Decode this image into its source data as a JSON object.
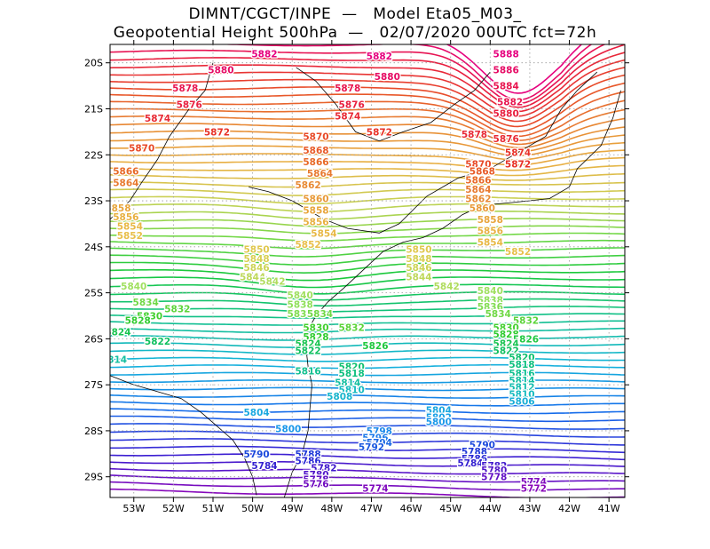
{
  "header": {
    "title_line1": "DIMNT/CGCT/INPE  —   Model Eta05_M03_",
    "title_line2": "Geopotential Height 500hPa  —   02/07/2020 00UTC fct=72h"
  },
  "chart_data": {
    "type": "contour",
    "title": "DIMNT/CGCT/INPE  —   Model Eta05_M03_",
    "subtitle": "Geopotential Height 500hPa  —   02/07/2020 00UTC fct=72h",
    "xlabel": "",
    "ylabel": "",
    "xlim": [
      -53.6,
      -40.6
    ],
    "ylim": [
      -29.45,
      -19.6
    ],
    "grid": true,
    "x_ticks": [
      -53,
      -52,
      -51,
      -50,
      -49,
      -48,
      -47,
      -46,
      -45,
      -44,
      -43,
      -42,
      -41
    ],
    "x_tick_labels": [
      "53W",
      "52W",
      "51W",
      "50W",
      "49W",
      "48W",
      "47W",
      "46W",
      "45W",
      "44W",
      "43W",
      "42W",
      "41W"
    ],
    "y_ticks": [
      -20,
      -21,
      -22,
      -23,
      -24,
      -25,
      -26,
      -27,
      -28,
      -29
    ],
    "y_tick_labels": [
      "20S",
      "21S",
      "22S",
      "23S",
      "24S",
      "25S",
      "26S",
      "27S",
      "28S",
      "29S"
    ],
    "contour_interval": 2,
    "level_range": [
      5766,
      5890
    ],
    "contour_labels": [
      {
        "value": 5888,
        "lon": -43.6,
        "lat": -19.8,
        "color": "#e6007e"
      },
      {
        "value": 5886,
        "lon": -43.6,
        "lat": -20.15,
        "color": "#e60a64"
      },
      {
        "value": 5884,
        "lon": -43.6,
        "lat": -20.5,
        "color": "#e8154f"
      },
      {
        "value": 5882,
        "lon": -49.7,
        "lat": -19.8,
        "color": "#e6007e"
      },
      {
        "value": 5882,
        "lon": -46.8,
        "lat": -19.85,
        "color": "#e6007e"
      },
      {
        "value": 5882,
        "lon": -43.5,
        "lat": -20.85,
        "color": "#e8154f"
      },
      {
        "value": 5880,
        "lon": -50.8,
        "lat": -20.15,
        "color": "#e60a64"
      },
      {
        "value": 5880,
        "lon": -46.6,
        "lat": -20.3,
        "color": "#e60a64"
      },
      {
        "value": 5880,
        "lon": -43.6,
        "lat": -21.1,
        "color": "#e82040"
      },
      {
        "value": 5878,
        "lon": -51.7,
        "lat": -20.55,
        "color": "#e8154f"
      },
      {
        "value": 5878,
        "lon": -47.6,
        "lat": -20.55,
        "color": "#e8154f"
      },
      {
        "value": 5878,
        "lon": -44.4,
        "lat": -21.55,
        "color": "#e82a35"
      },
      {
        "value": 5876,
        "lon": -51.6,
        "lat": -20.9,
        "color": "#e82040"
      },
      {
        "value": 5876,
        "lon": -47.5,
        "lat": -20.9,
        "color": "#e82040"
      },
      {
        "value": 5876,
        "lon": -43.6,
        "lat": -21.65,
        "color": "#e82a35"
      },
      {
        "value": 5874,
        "lon": -52.4,
        "lat": -21.2,
        "color": "#e82a35"
      },
      {
        "value": 5874,
        "lon": -47.6,
        "lat": -21.15,
        "color": "#e82a35"
      },
      {
        "value": 5874,
        "lon": -43.3,
        "lat": -21.95,
        "color": "#e83228"
      },
      {
        "value": 5872,
        "lon": -50.9,
        "lat": -21.5,
        "color": "#e83228"
      },
      {
        "value": 5872,
        "lon": -46.8,
        "lat": -21.5,
        "color": "#e83228"
      },
      {
        "value": 5872,
        "lon": -43.3,
        "lat": -22.2,
        "color": "#e83228"
      },
      {
        "value": 5870,
        "lon": -52.8,
        "lat": -21.85,
        "color": "#e84a28"
      },
      {
        "value": 5870,
        "lon": -48.4,
        "lat": -21.6,
        "color": "#e84a28"
      },
      {
        "value": 5870,
        "lon": -44.3,
        "lat": -22.2,
        "color": "#e84a28"
      },
      {
        "value": 5868,
        "lon": -48.4,
        "lat": -21.9,
        "color": "#e85a28"
      },
      {
        "value": 5868,
        "lon": -44.2,
        "lat": -22.35,
        "color": "#e85a28"
      },
      {
        "value": 5866,
        "lon": -53.2,
        "lat": -22.35,
        "color": "#e86a28"
      },
      {
        "value": 5866,
        "lon": -48.4,
        "lat": -22.15,
        "color": "#e86a28"
      },
      {
        "value": 5866,
        "lon": -44.3,
        "lat": -22.55,
        "color": "#e86a28"
      },
      {
        "value": 5864,
        "lon": -53.2,
        "lat": -22.6,
        "color": "#e87a30"
      },
      {
        "value": 5864,
        "lon": -48.3,
        "lat": -22.4,
        "color": "#e87a30"
      },
      {
        "value": 5864,
        "lon": -44.3,
        "lat": -22.75,
        "color": "#e87a30"
      },
      {
        "value": 5862,
        "lon": -48.6,
        "lat": -22.65,
        "color": "#e88a35"
      },
      {
        "value": 5862,
        "lon": -44.3,
        "lat": -22.95,
        "color": "#e88a35"
      },
      {
        "value": 5860,
        "lon": -48.4,
        "lat": -22.95,
        "color": "#e89a38"
      },
      {
        "value": 5860,
        "lon": -44.2,
        "lat": -23.15,
        "color": "#e89a38"
      },
      {
        "value": 5858,
        "lon": -53.4,
        "lat": -23.15,
        "color": "#e8a53c"
      },
      {
        "value": 5858,
        "lon": -48.4,
        "lat": -23.2,
        "color": "#e8a53c"
      },
      {
        "value": 5858,
        "lon": -44.0,
        "lat": -23.4,
        "color": "#e8a53c"
      },
      {
        "value": 5856,
        "lon": -53.2,
        "lat": -23.35,
        "color": "#e8b040"
      },
      {
        "value": 5856,
        "lon": -48.4,
        "lat": -23.45,
        "color": "#e8b040"
      },
      {
        "value": 5856,
        "lon": -44.0,
        "lat": -23.65,
        "color": "#e8b040"
      },
      {
        "value": 5854,
        "lon": -53.1,
        "lat": -23.55,
        "color": "#e8b845"
      },
      {
        "value": 5854,
        "lon": -48.2,
        "lat": -23.7,
        "color": "#e8b845"
      },
      {
        "value": 5854,
        "lon": -44.0,
        "lat": -23.9,
        "color": "#e8b845"
      },
      {
        "value": 5852,
        "lon": -53.1,
        "lat": -23.75,
        "color": "#e8bf4a"
      },
      {
        "value": 5852,
        "lon": -48.6,
        "lat": -23.95,
        "color": "#e8bf4a"
      },
      {
        "value": 5852,
        "lon": -43.3,
        "lat": -24.1,
        "color": "#e8bf4a"
      },
      {
        "value": 5850,
        "lon": -49.9,
        "lat": -24.05,
        "color": "#e0c84e"
      },
      {
        "value": 5850,
        "lon": -45.8,
        "lat": -24.05,
        "color": "#e0c84e"
      },
      {
        "value": 5848,
        "lon": -49.9,
        "lat": -24.25,
        "color": "#d8cf52"
      },
      {
        "value": 5848,
        "lon": -45.8,
        "lat": -24.25,
        "color": "#d8cf52"
      },
      {
        "value": 5846,
        "lon": -49.9,
        "lat": -24.45,
        "color": "#ccd455"
      },
      {
        "value": 5846,
        "lon": -45.8,
        "lat": -24.45,
        "color": "#ccd455"
      },
      {
        "value": 5844,
        "lon": -50.0,
        "lat": -24.65,
        "color": "#bed85a"
      },
      {
        "value": 5844,
        "lon": -45.8,
        "lat": -24.65,
        "color": "#bed85a"
      },
      {
        "value": 5842,
        "lon": -49.5,
        "lat": -24.75,
        "color": "#b0dc5e"
      },
      {
        "value": 5842,
        "lon": -45.1,
        "lat": -24.85,
        "color": "#b0dc5e"
      },
      {
        "value": 5840,
        "lon": -53.0,
        "lat": -24.85,
        "color": "#a0e060"
      },
      {
        "value": 5840,
        "lon": -48.8,
        "lat": -25.05,
        "color": "#a0e060"
      },
      {
        "value": 5840,
        "lon": -44.0,
        "lat": -24.95,
        "color": "#a0e060"
      },
      {
        "value": 5838,
        "lon": -48.8,
        "lat": -25.25,
        "color": "#90e05a"
      },
      {
        "value": 5838,
        "lon": -44.0,
        "lat": -25.15,
        "color": "#90e05a"
      },
      {
        "value": 5836,
        "lon": -48.8,
        "lat": -25.45,
        "color": "#80dc50"
      },
      {
        "value": 5836,
        "lon": -44.0,
        "lat": -25.3,
        "color": "#80dc50"
      },
      {
        "value": 5834,
        "lon": -52.7,
        "lat": -25.2,
        "color": "#70d845"
      },
      {
        "value": 5834,
        "lon": -48.3,
        "lat": -25.45,
        "color": "#70d845"
      },
      {
        "value": 5834,
        "lon": -43.8,
        "lat": -25.45,
        "color": "#70d845"
      },
      {
        "value": 5832,
        "lon": -51.9,
        "lat": -25.35,
        "color": "#5cd43a"
      },
      {
        "value": 5832,
        "lon": -47.5,
        "lat": -25.75,
        "color": "#5cd43a"
      },
      {
        "value": 5832,
        "lon": -43.1,
        "lat": -25.6,
        "color": "#5cd43a"
      },
      {
        "value": 5830,
        "lon": -52.6,
        "lat": -25.5,
        "color": "#44d030"
      },
      {
        "value": 5830,
        "lon": -48.4,
        "lat": -25.75,
        "color": "#44d030"
      },
      {
        "value": 5830,
        "lon": -43.6,
        "lat": -25.75,
        "color": "#44d030"
      },
      {
        "value": 5828,
        "lon": -52.9,
        "lat": -25.6,
        "color": "#30cc30"
      },
      {
        "value": 5828,
        "lon": -48.4,
        "lat": -25.95,
        "color": "#30cc30"
      },
      {
        "value": 5828,
        "lon": -43.6,
        "lat": -25.9,
        "color": "#30cc30"
      },
      {
        "value": 5826,
        "lon": -46.9,
        "lat": -26.15,
        "color": "#20c840"
      },
      {
        "value": 5826,
        "lon": -43.1,
        "lat": -26.0,
        "color": "#20c840"
      },
      {
        "value": 5824,
        "lon": -53.4,
        "lat": -25.85,
        "color": "#18c450"
      },
      {
        "value": 5824,
        "lon": -48.6,
        "lat": -26.1,
        "color": "#18c450"
      },
      {
        "value": 5824,
        "lon": -43.6,
        "lat": -26.1,
        "color": "#18c450"
      },
      {
        "value": 5822,
        "lon": -52.4,
        "lat": -26.05,
        "color": "#10c060"
      },
      {
        "value": 5822,
        "lon": -48.6,
        "lat": -26.25,
        "color": "#10c060"
      },
      {
        "value": 5822,
        "lon": -43.6,
        "lat": -26.25,
        "color": "#10c060"
      },
      {
        "value": 5820,
        "lon": -47.5,
        "lat": -26.6,
        "color": "#10c070"
      },
      {
        "value": 5820,
        "lon": -43.2,
        "lat": -26.4,
        "color": "#10c070"
      },
      {
        "value": 5818,
        "lon": -47.5,
        "lat": -26.75,
        "color": "#10c080"
      },
      {
        "value": 5818,
        "lon": -43.2,
        "lat": -26.55,
        "color": "#10c080"
      },
      {
        "value": 5816,
        "lon": -48.6,
        "lat": -26.7,
        "color": "#12c090"
      },
      {
        "value": 5816,
        "lon": -43.2,
        "lat": -26.75,
        "color": "#12c090"
      },
      {
        "value": 5814,
        "lon": -53.5,
        "lat": -26.45,
        "color": "#14bfa0"
      },
      {
        "value": 5814,
        "lon": -47.6,
        "lat": -26.95,
        "color": "#14bfa0"
      },
      {
        "value": 5814,
        "lon": -43.2,
        "lat": -26.9,
        "color": "#14bfa0"
      },
      {
        "value": 5812,
        "lon": -43.2,
        "lat": -27.05,
        "color": "#16bdb0"
      },
      {
        "value": 5810,
        "lon": -47.5,
        "lat": -27.1,
        "color": "#18bbc0"
      },
      {
        "value": 5810,
        "lon": -43.2,
        "lat": -27.2,
        "color": "#18bbc0"
      },
      {
        "value": 5808,
        "lon": -47.8,
        "lat": -27.25,
        "color": "#18b5cc"
      },
      {
        "value": 5806,
        "lon": -43.2,
        "lat": -27.35,
        "color": "#1aaed6"
      },
      {
        "value": 5804,
        "lon": -49.9,
        "lat": -27.6,
        "color": "#1aa8e0"
      },
      {
        "value": 5804,
        "lon": -45.3,
        "lat": -27.55,
        "color": "#1aa8e0"
      },
      {
        "value": 5802,
        "lon": -45.3,
        "lat": -27.7,
        "color": "#1aa0e6"
      },
      {
        "value": 5800,
        "lon": -49.1,
        "lat": -27.95,
        "color": "#1a98ea"
      },
      {
        "value": 5800,
        "lon": -45.3,
        "lat": -27.8,
        "color": "#1a98ea"
      },
      {
        "value": 5798,
        "lon": -46.8,
        "lat": -28.0,
        "color": "#1a88ea"
      },
      {
        "value": 5796,
        "lon": -46.9,
        "lat": -28.15,
        "color": "#1a78e8"
      },
      {
        "value": 5794,
        "lon": -46.8,
        "lat": -28.25,
        "color": "#1a68e4"
      },
      {
        "value": 5792,
        "lon": -47.0,
        "lat": -28.35,
        "color": "#1a58e0"
      },
      {
        "value": 5790,
        "lon": -49.9,
        "lat": -28.5,
        "color": "#1a48dc"
      },
      {
        "value": 5790,
        "lon": -44.2,
        "lat": -28.3,
        "color": "#1a48dc"
      },
      {
        "value": 5788,
        "lon": -48.6,
        "lat": -28.5,
        "color": "#1e38d8"
      },
      {
        "value": 5788,
        "lon": -44.4,
        "lat": -28.45,
        "color": "#1e38d8"
      },
      {
        "value": 5786,
        "lon": -48.6,
        "lat": -28.65,
        "color": "#2828d4"
      },
      {
        "value": 5786,
        "lon": -44.4,
        "lat": -28.6,
        "color": "#2828d4"
      },
      {
        "value": 5784,
        "lon": -49.7,
        "lat": -28.75,
        "color": "#3420d0"
      },
      {
        "value": 5784,
        "lon": -44.5,
        "lat": -28.7,
        "color": "#3420d0"
      },
      {
        "value": 5782,
        "lon": -48.2,
        "lat": -28.8,
        "color": "#4018cc"
      },
      {
        "value": 5782,
        "lon": -43.9,
        "lat": -28.75,
        "color": "#4018cc"
      },
      {
        "value": 5780,
        "lon": -48.4,
        "lat": -28.95,
        "color": "#5014c8"
      },
      {
        "value": 5780,
        "lon": -43.9,
        "lat": -28.85,
        "color": "#5014c8"
      },
      {
        "value": 5778,
        "lon": -48.4,
        "lat": -29.05,
        "color": "#6010c4"
      },
      {
        "value": 5778,
        "lon": -43.9,
        "lat": -29.0,
        "color": "#6010c4"
      },
      {
        "value": 5776,
        "lon": -48.4,
        "lat": -29.15,
        "color": "#700cc0"
      },
      {
        "value": 5774,
        "lon": -46.9,
        "lat": -29.25,
        "color": "#800abe"
      },
      {
        "value": 5774,
        "lon": -42.9,
        "lat": -29.1,
        "color": "#800abe"
      },
      {
        "value": 5772,
        "lon": -42.9,
        "lat": -29.25,
        "color": "#8a08ba"
      }
    ]
  }
}
